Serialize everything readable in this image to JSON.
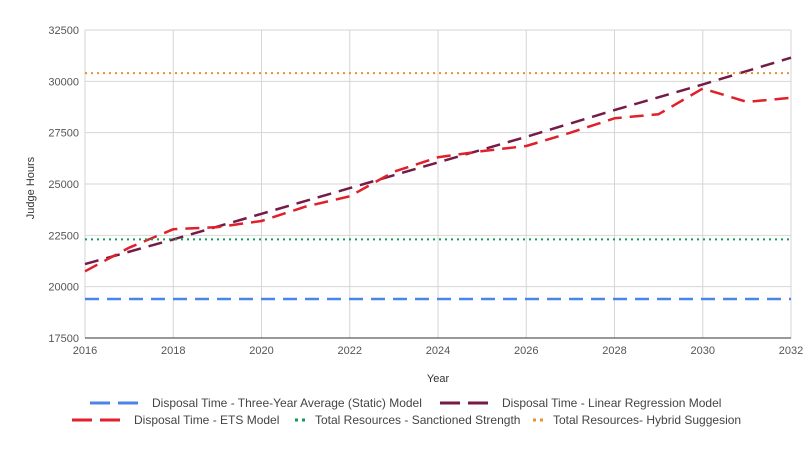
{
  "chart_data": {
    "type": "line",
    "xlabel": "Year",
    "ylabel": "Judge Hours",
    "xlim": [
      2016,
      2032
    ],
    "ylim": [
      17500,
      32500
    ],
    "x_ticks": [
      "2016",
      "2018",
      "2020",
      "2022",
      "2024",
      "2026",
      "2028",
      "2030",
      "2032"
    ],
    "y_ticks": [
      "17500",
      "20000",
      "22500",
      "25000",
      "27500",
      "30000",
      "32500"
    ],
    "grid": true,
    "legend_position": "bottom",
    "series": [
      {
        "name": "Disposal Time - Three-Year Average (Static) Model",
        "color": "#4a86e8",
        "style": "dashed",
        "x": [
          2016,
          2032
        ],
        "y": [
          19400,
          19400
        ]
      },
      {
        "name": "Disposal Time - Linear Regression Model",
        "color": "#741b47",
        "style": "dashed",
        "x": [
          2016,
          2018,
          2020,
          2022,
          2024,
          2026,
          2028,
          2030,
          2032
        ],
        "y": [
          21100,
          22300,
          23550,
          24800,
          26050,
          27300,
          28600,
          29850,
          31150
        ]
      },
      {
        "name": "Disposal Time - ETS Model",
        "color": "#e0202a",
        "style": "dashed",
        "x": [
          2016,
          2017,
          2018,
          2019,
          2020,
          2021,
          2022,
          2023,
          2024,
          2025,
          2026,
          2027,
          2028,
          2029,
          2030,
          2031,
          2032
        ],
        "y": [
          20750,
          21900,
          22800,
          22900,
          23200,
          23900,
          24400,
          25600,
          26300,
          26600,
          26850,
          27500,
          28200,
          28400,
          29650,
          29000,
          29200
        ]
      },
      {
        "name": "Total Resources - Sanctioned Strength",
        "color": "#0f9d58",
        "style": "dotted",
        "x": [
          2016,
          2032
        ],
        "y": [
          22300,
          22300
        ]
      },
      {
        "name": "Total Resources- Hybrid Suggesion",
        "color": "#e69138",
        "style": "dotted",
        "x": [
          2016,
          2032
        ],
        "y": [
          30400,
          30400
        ]
      }
    ]
  }
}
